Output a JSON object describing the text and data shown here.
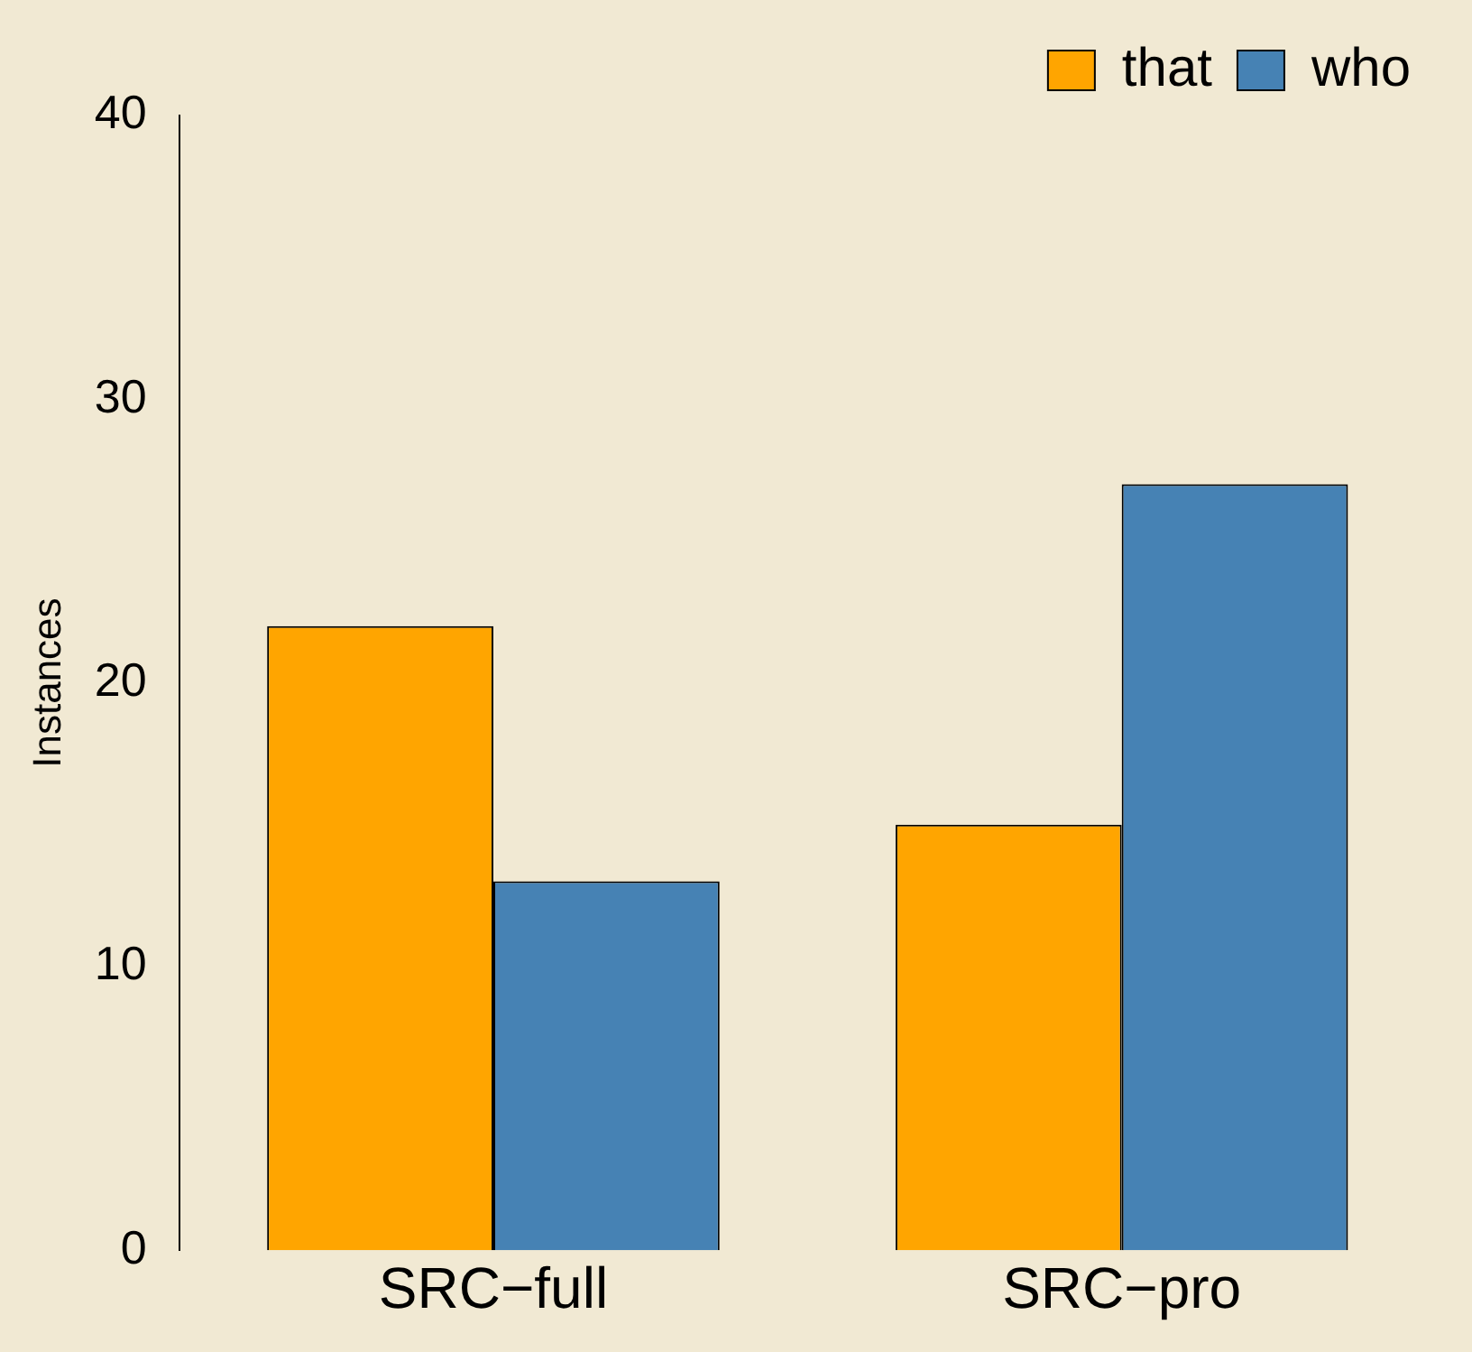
{
  "chart_data": {
    "type": "bar",
    "ylabel": "Instances",
    "categories": [
      "SRC−full",
      "SRC−pro"
    ],
    "series": [
      {
        "name": "that",
        "color": "#ffa500",
        "values": [
          22,
          15
        ]
      },
      {
        "name": "who",
        "color": "#4682b4",
        "values": [
          13,
          27
        ]
      }
    ],
    "ylim": [
      0,
      40
    ],
    "yticks": [
      0,
      10,
      20,
      30,
      40
    ],
    "legend": "top right"
  }
}
